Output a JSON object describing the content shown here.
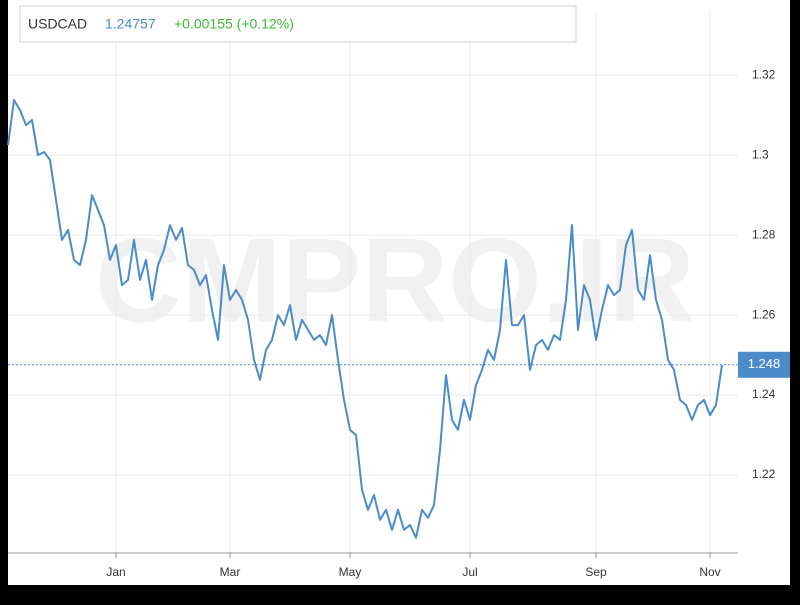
{
  "chart_data": {
    "type": "line",
    "title": "USDCAD",
    "price": 1.24757,
    "change": "+0.00155 (+0.12%)",
    "watermark": "CMPRO.IR",
    "color": "#4a8cc9",
    "grid": true,
    "categories": [
      null,
      null,
      null,
      null,
      null,
      null,
      null,
      null,
      null,
      null,
      null,
      null,
      null,
      null,
      null,
      null,
      null,
      null,
      "Jan",
      null,
      null,
      null,
      null,
      null,
      null,
      null,
      null,
      null,
      null,
      null,
      null,
      null,
      null,
      null,
      null,
      null,
      null,
      "Mar",
      null,
      null,
      null,
      null,
      null,
      null,
      null,
      null,
      null,
      null,
      null,
      null,
      null,
      null,
      null,
      null,
      null,
      null,
      null,
      "May",
      null,
      null,
      null,
      null,
      null,
      null,
      null,
      null,
      null,
      null,
      null,
      null,
      null,
      null,
      null,
      null,
      null,
      null,
      null,
      "Jul",
      null,
      null,
      null,
      null,
      null,
      null,
      null,
      null,
      null,
      null,
      null,
      null,
      null,
      null,
      null,
      null,
      null,
      null,
      null,
      null,
      "Sep",
      null,
      null,
      null,
      null,
      null,
      null,
      null,
      null,
      null,
      null,
      null,
      null,
      null,
      null,
      null,
      null,
      null,
      null,
      "Nov",
      null,
      null
    ],
    "values": [
      1.3025,
      1.3138,
      1.3113,
      1.3075,
      1.3088,
      1.3,
      1.3008,
      1.2988,
      1.2888,
      1.2788,
      1.2813,
      1.2738,
      1.2725,
      1.2788,
      1.29,
      1.2863,
      1.2825,
      1.2738,
      1.2775,
      1.2675,
      1.2688,
      1.2788,
      1.2688,
      1.2738,
      1.2638,
      1.2725,
      1.2763,
      1.2825,
      1.2788,
      1.2818,
      1.2725,
      1.2713,
      1.2675,
      1.27,
      1.2613,
      1.2538,
      1.2725,
      1.2638,
      1.2663,
      1.2638,
      1.2588,
      1.2488,
      1.2438,
      1.2513,
      1.2538,
      1.26,
      1.2575,
      1.2625,
      1.2538,
      1.2588,
      1.2563,
      1.2538,
      1.255,
      1.2525,
      1.26,
      1.2488,
      1.2388,
      1.2313,
      1.23,
      1.2163,
      1.2113,
      1.215,
      1.2088,
      1.2113,
      1.2063,
      1.2113,
      1.2063,
      1.2075,
      1.2043,
      1.2113,
      1.2093,
      1.2125,
      1.2263,
      1.245,
      1.2338,
      1.2313,
      1.2388,
      1.2338,
      1.2425,
      1.2463,
      1.2513,
      1.2488,
      1.2563,
      1.2738,
      1.2575,
      1.2575,
      1.26,
      1.2463,
      1.2525,
      1.2538,
      1.2513,
      1.255,
      1.2538,
      1.2638,
      1.2825,
      1.2563,
      1.2675,
      1.2638,
      1.2538,
      1.2613,
      1.2675,
      1.265,
      1.2663,
      1.2775,
      1.2813,
      1.2663,
      1.2638,
      1.275,
      1.2638,
      1.2588,
      1.2488,
      1.2463,
      1.2388,
      1.2375,
      1.2338,
      1.2375,
      1.2388,
      1.235,
      1.2375,
      1.2476
    ],
    "ylim": [
      1.2005,
      1.3363
    ],
    "yticks": [
      1.22,
      1.24,
      1.26,
      1.28,
      1.3,
      1.32
    ],
    "marker": {
      "value": 1.24757,
      "label": "1.248"
    }
  }
}
